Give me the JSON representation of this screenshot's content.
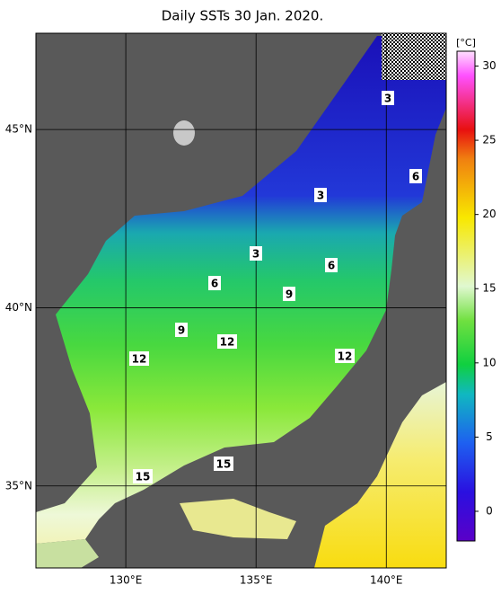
{
  "title": "Daily SSTs 30 Jan. 2020.",
  "map": {
    "lon_range": [
      126.55,
      142.3
    ],
    "lat_range": [
      32.7,
      47.7
    ],
    "lon_ticks": [
      {
        "value": 130,
        "label": "130°E"
      },
      {
        "value": 135,
        "label": "135°E"
      },
      {
        "value": 140,
        "label": "140°E"
      }
    ],
    "lat_ticks": [
      {
        "value": 35,
        "label": "35°N"
      },
      {
        "value": 40,
        "label": "40°N"
      },
      {
        "value": 45,
        "label": "45°N"
      }
    ],
    "contour_labels": [
      3,
      3,
      3,
      6,
      6,
      6,
      9,
      9,
      12,
      12,
      12,
      15,
      15
    ]
  },
  "colorbar": {
    "unit": "[°C]",
    "range": [
      -2,
      31
    ],
    "ticks": [
      0,
      5,
      10,
      15,
      20,
      25,
      30
    ]
  }
}
